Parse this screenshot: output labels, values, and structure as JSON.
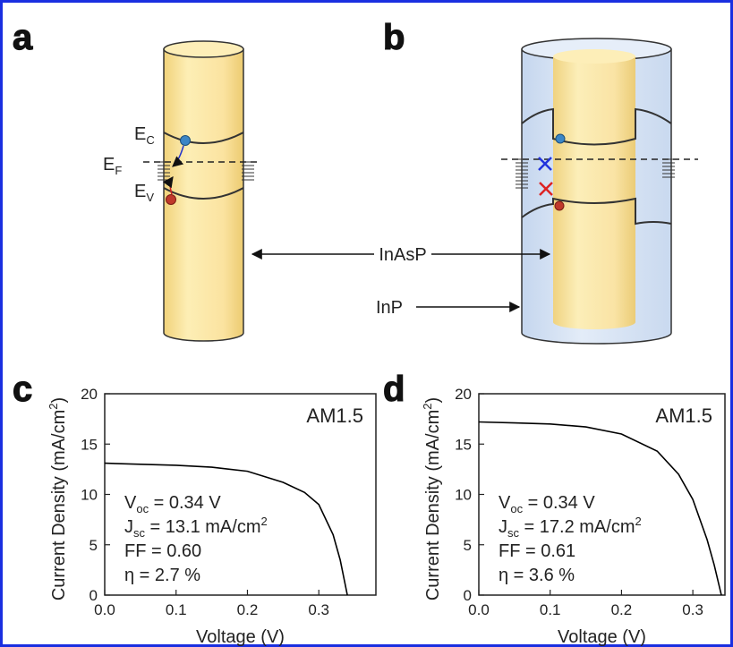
{
  "panel_labels": [
    "a",
    "b",
    "c",
    "d"
  ],
  "diagram": {
    "ec": {
      "symbol": "E",
      "sub": "C"
    },
    "ef": {
      "symbol": "E",
      "sub": "F"
    },
    "ev": {
      "symbol": "E",
      "sub": "V"
    },
    "core_label": "InAsP",
    "shell_label": "InP"
  },
  "chart_data": [
    {
      "type": "line",
      "x_label": "Voltage (V)",
      "y_label": {
        "text": "Current Density (mA/cm",
        "sup": "2",
        "end": ")"
      },
      "x": [
        0,
        0.05,
        0.1,
        0.15,
        0.2,
        0.25,
        0.28,
        0.3,
        0.32,
        0.33,
        0.34
      ],
      "series": [
        {
          "color": "#000000",
          "values": [
            13.1,
            13.0,
            12.9,
            12.7,
            12.3,
            11.2,
            10.2,
            9.0,
            6.0,
            3.5,
            0
          ]
        }
      ],
      "xlim": [
        0,
        0.38
      ],
      "xticks": [
        {
          "value": 0,
          "label": "0.0"
        },
        0.1,
        0.2,
        0.3
      ],
      "ylim": [
        0,
        20
      ],
      "yticks": [
        0,
        5,
        10,
        15,
        20
      ],
      "annotation": "AM1.5",
      "parameters": [
        {
          "symbol": "V",
          "sub": "oc",
          "text": " = 0.34 V"
        },
        {
          "symbol": "J",
          "sub": "sc",
          "text": " = 13.1 mA/cm",
          "sup": "2"
        },
        {
          "symbol": "FF",
          "text": " = 0.60"
        },
        {
          "symbol": "η",
          "text": "   = 2.7 %"
        }
      ]
    },
    {
      "type": "line",
      "x_label": "Voltage (V)",
      "y_label": {
        "text": "Current Density (mA/cm",
        "sup": "2",
        "end": ")"
      },
      "x": [
        0,
        0.05,
        0.1,
        0.15,
        0.2,
        0.25,
        0.28,
        0.3,
        0.32,
        0.33,
        0.34
      ],
      "series": [
        {
          "color": "#000000",
          "values": [
            17.2,
            17.1,
            17.0,
            16.7,
            16.0,
            14.3,
            12.0,
            9.5,
            5.5,
            3.0,
            0
          ]
        }
      ],
      "xlim": [
        0,
        0.345
      ],
      "xticks": [
        {
          "value": 0,
          "label": "0.0"
        },
        0.1,
        0.2,
        0.3
      ],
      "ylim": [
        0,
        20
      ],
      "yticks": [
        0,
        5,
        10,
        15,
        20
      ],
      "annotation": "AM1.5",
      "parameters": [
        {
          "symbol": "V",
          "sub": "oc",
          "text": " = 0.34 V"
        },
        {
          "symbol": "J",
          "sub": "sc",
          "text": " = 17.2 mA/cm",
          "sup": "2"
        },
        {
          "symbol": "FF",
          "text": " = 0.61"
        },
        {
          "symbol": "η",
          "text": "   = 3.6 %"
        }
      ]
    }
  ]
}
